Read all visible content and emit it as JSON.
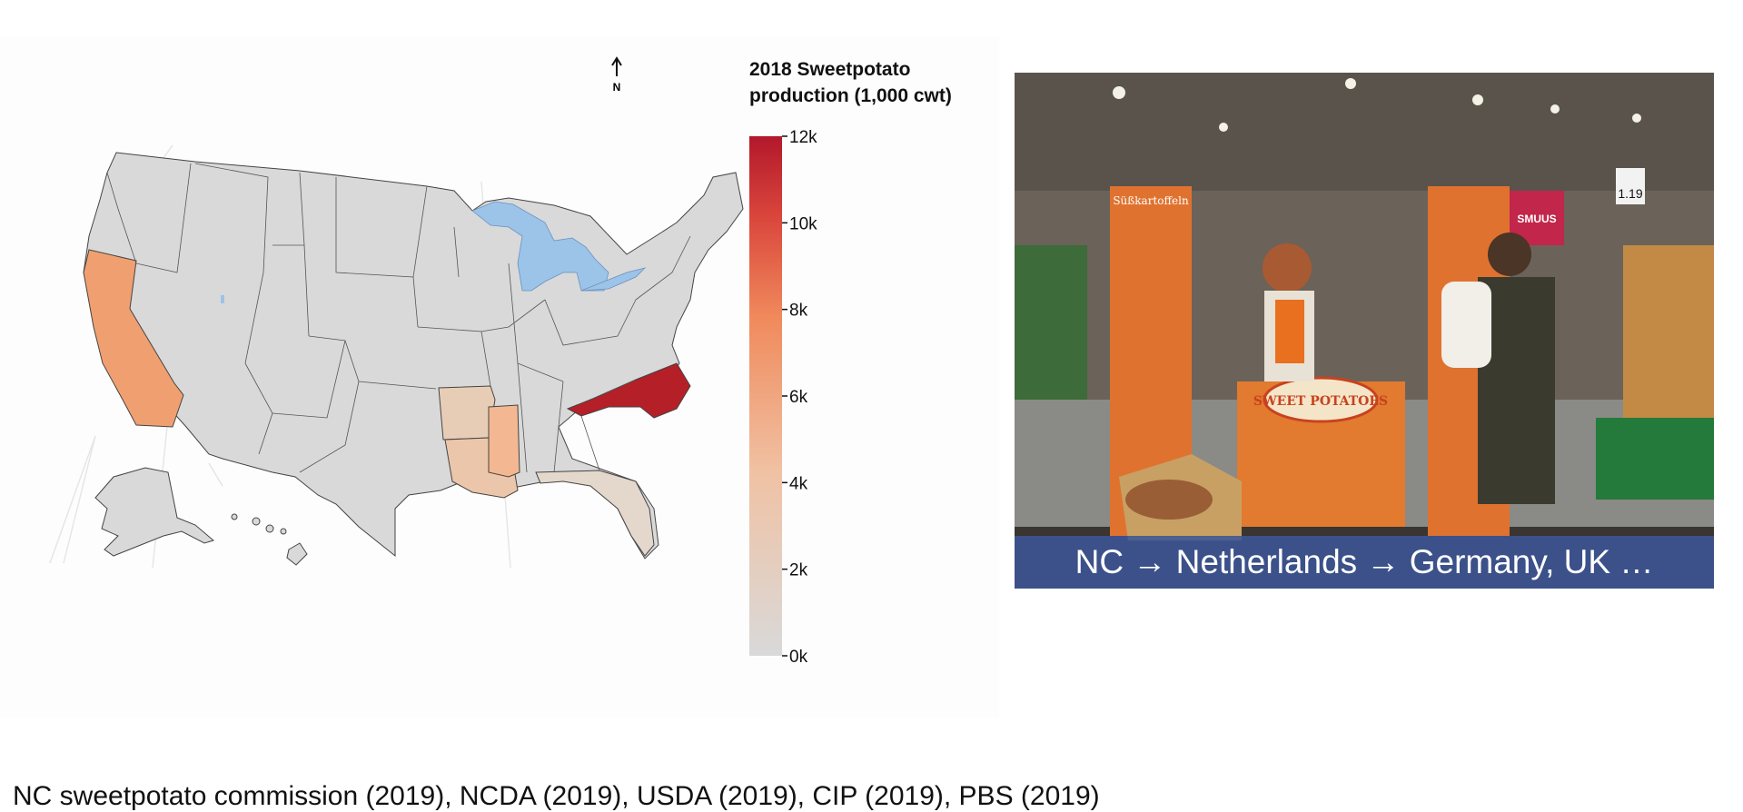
{
  "map": {
    "north_label": "N",
    "legend_title_line1": "2018 Sweetpotato",
    "legend_title_line2": "production (1,000 cwt)",
    "legend_ticks": [
      "12k",
      "10k",
      "8k",
      "6k",
      "4k",
      "2k",
      "0k"
    ],
    "legend_domain": [
      0,
      12
    ],
    "colors": {
      "low": "#d9d9d9",
      "mid": "#f2a57d",
      "high": "#b2182b",
      "water": "#9cc3e8",
      "no_data": "#d9d9d9"
    },
    "highlighted_states": [
      {
        "state": "North Carolina",
        "level": "high"
      },
      {
        "state": "California",
        "level": "mid-high"
      },
      {
        "state": "Mississippi",
        "level": "mid"
      },
      {
        "state": "Louisiana",
        "level": "low-mid"
      },
      {
        "state": "Arkansas",
        "level": "low-mid"
      },
      {
        "state": "Florida",
        "level": "low"
      }
    ]
  },
  "photo": {
    "caption": "NC → Netherlands → Germany, UK …",
    "banner_text": "Süßkartoffeln",
    "brand_text": "SWEET POTATOES",
    "price_tag": "1.19",
    "shop_sign": "SMUUS"
  },
  "sources": "NC sweetpotato commission (2019), NCDA (2019), USDA (2019), CIP (2019), PBS (2019)"
}
